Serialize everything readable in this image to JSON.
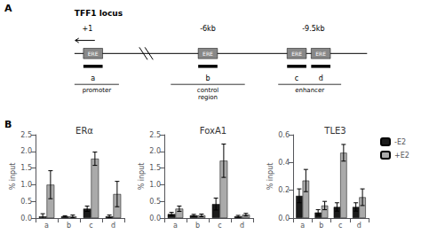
{
  "chart_data": [
    {
      "type": "map",
      "title": "TFF1 locus",
      "annotations": [
        "A",
        "+1",
        "-6kb",
        "-9.5kb",
        "ERE",
        "promoter",
        "control\nregion",
        "enhancer"
      ],
      "categories": [
        "a",
        "b",
        "c",
        "d"
      ]
    },
    {
      "type": "bar",
      "title": "ERα",
      "ylabel": "% input",
      "annotations": [
        "B"
      ],
      "categories": [
        "a",
        "b",
        "c",
        "d"
      ],
      "ylim": [
        0,
        2.5
      ],
      "yticks": [
        {
          "value": 0,
          "label": "0.0"
        },
        0.5,
        {
          "value": 1,
          "label": "1.0"
        },
        1.5,
        {
          "value": 2,
          "label": "2.0"
        },
        2.5
      ],
      "grid": false,
      "series": [
        {
          "name": "-E2",
          "color": "#1a1a1a",
          "values": [
            0.05,
            0.05,
            0.28,
            0.05
          ],
          "errors": [
            0.08,
            0.02,
            0.08,
            0.04
          ]
        },
        {
          "name": "+E2",
          "color": "#aaaaaa",
          "values": [
            1.0,
            0.05,
            1.78,
            0.72
          ],
          "errors": [
            0.42,
            0.04,
            0.2,
            0.38
          ]
        }
      ]
    },
    {
      "type": "bar",
      "title": "FoxA1",
      "ylabel": "% input",
      "categories": [
        "a",
        "b",
        "c",
        "d"
      ],
      "ylim": [
        0,
        2.5
      ],
      "yticks": [
        {
          "value": 0,
          "label": "0.0"
        },
        0.5,
        {
          "value": 1,
          "label": "1.0"
        },
        1.5,
        {
          "value": 2,
          "label": "2.0"
        },
        2.5
      ],
      "grid": false,
      "series": [
        {
          "name": "-E2",
          "color": "#1a1a1a",
          "values": [
            0.12,
            0.08,
            0.42,
            0.05
          ],
          "errors": [
            0.05,
            0.03,
            0.18,
            0.03
          ]
        },
        {
          "name": "+E2",
          "color": "#aaaaaa",
          "values": [
            0.28,
            0.08,
            1.72,
            0.1
          ],
          "errors": [
            0.08,
            0.04,
            0.5,
            0.04
          ]
        }
      ]
    },
    {
      "type": "bar",
      "title": "TLE3",
      "ylabel": "% input",
      "categories": [
        "a",
        "b",
        "c",
        "d"
      ],
      "ylim": [
        0,
        0.6
      ],
      "yticks": [
        {
          "value": 0,
          "label": "0.0"
        },
        0.2,
        0.4,
        0.6
      ],
      "grid": false,
      "legend": "right",
      "series": [
        {
          "name": "-E2",
          "color": "#1a1a1a",
          "values": [
            0.16,
            0.04,
            0.08,
            0.08
          ],
          "errors": [
            0.05,
            0.02,
            0.03,
            0.03
          ]
        },
        {
          "name": "+E2",
          "color": "#aaaaaa",
          "values": [
            0.27,
            0.09,
            0.47,
            0.15
          ],
          "errors": [
            0.08,
            0.03,
            0.06,
            0.06
          ]
        }
      ]
    }
  ]
}
